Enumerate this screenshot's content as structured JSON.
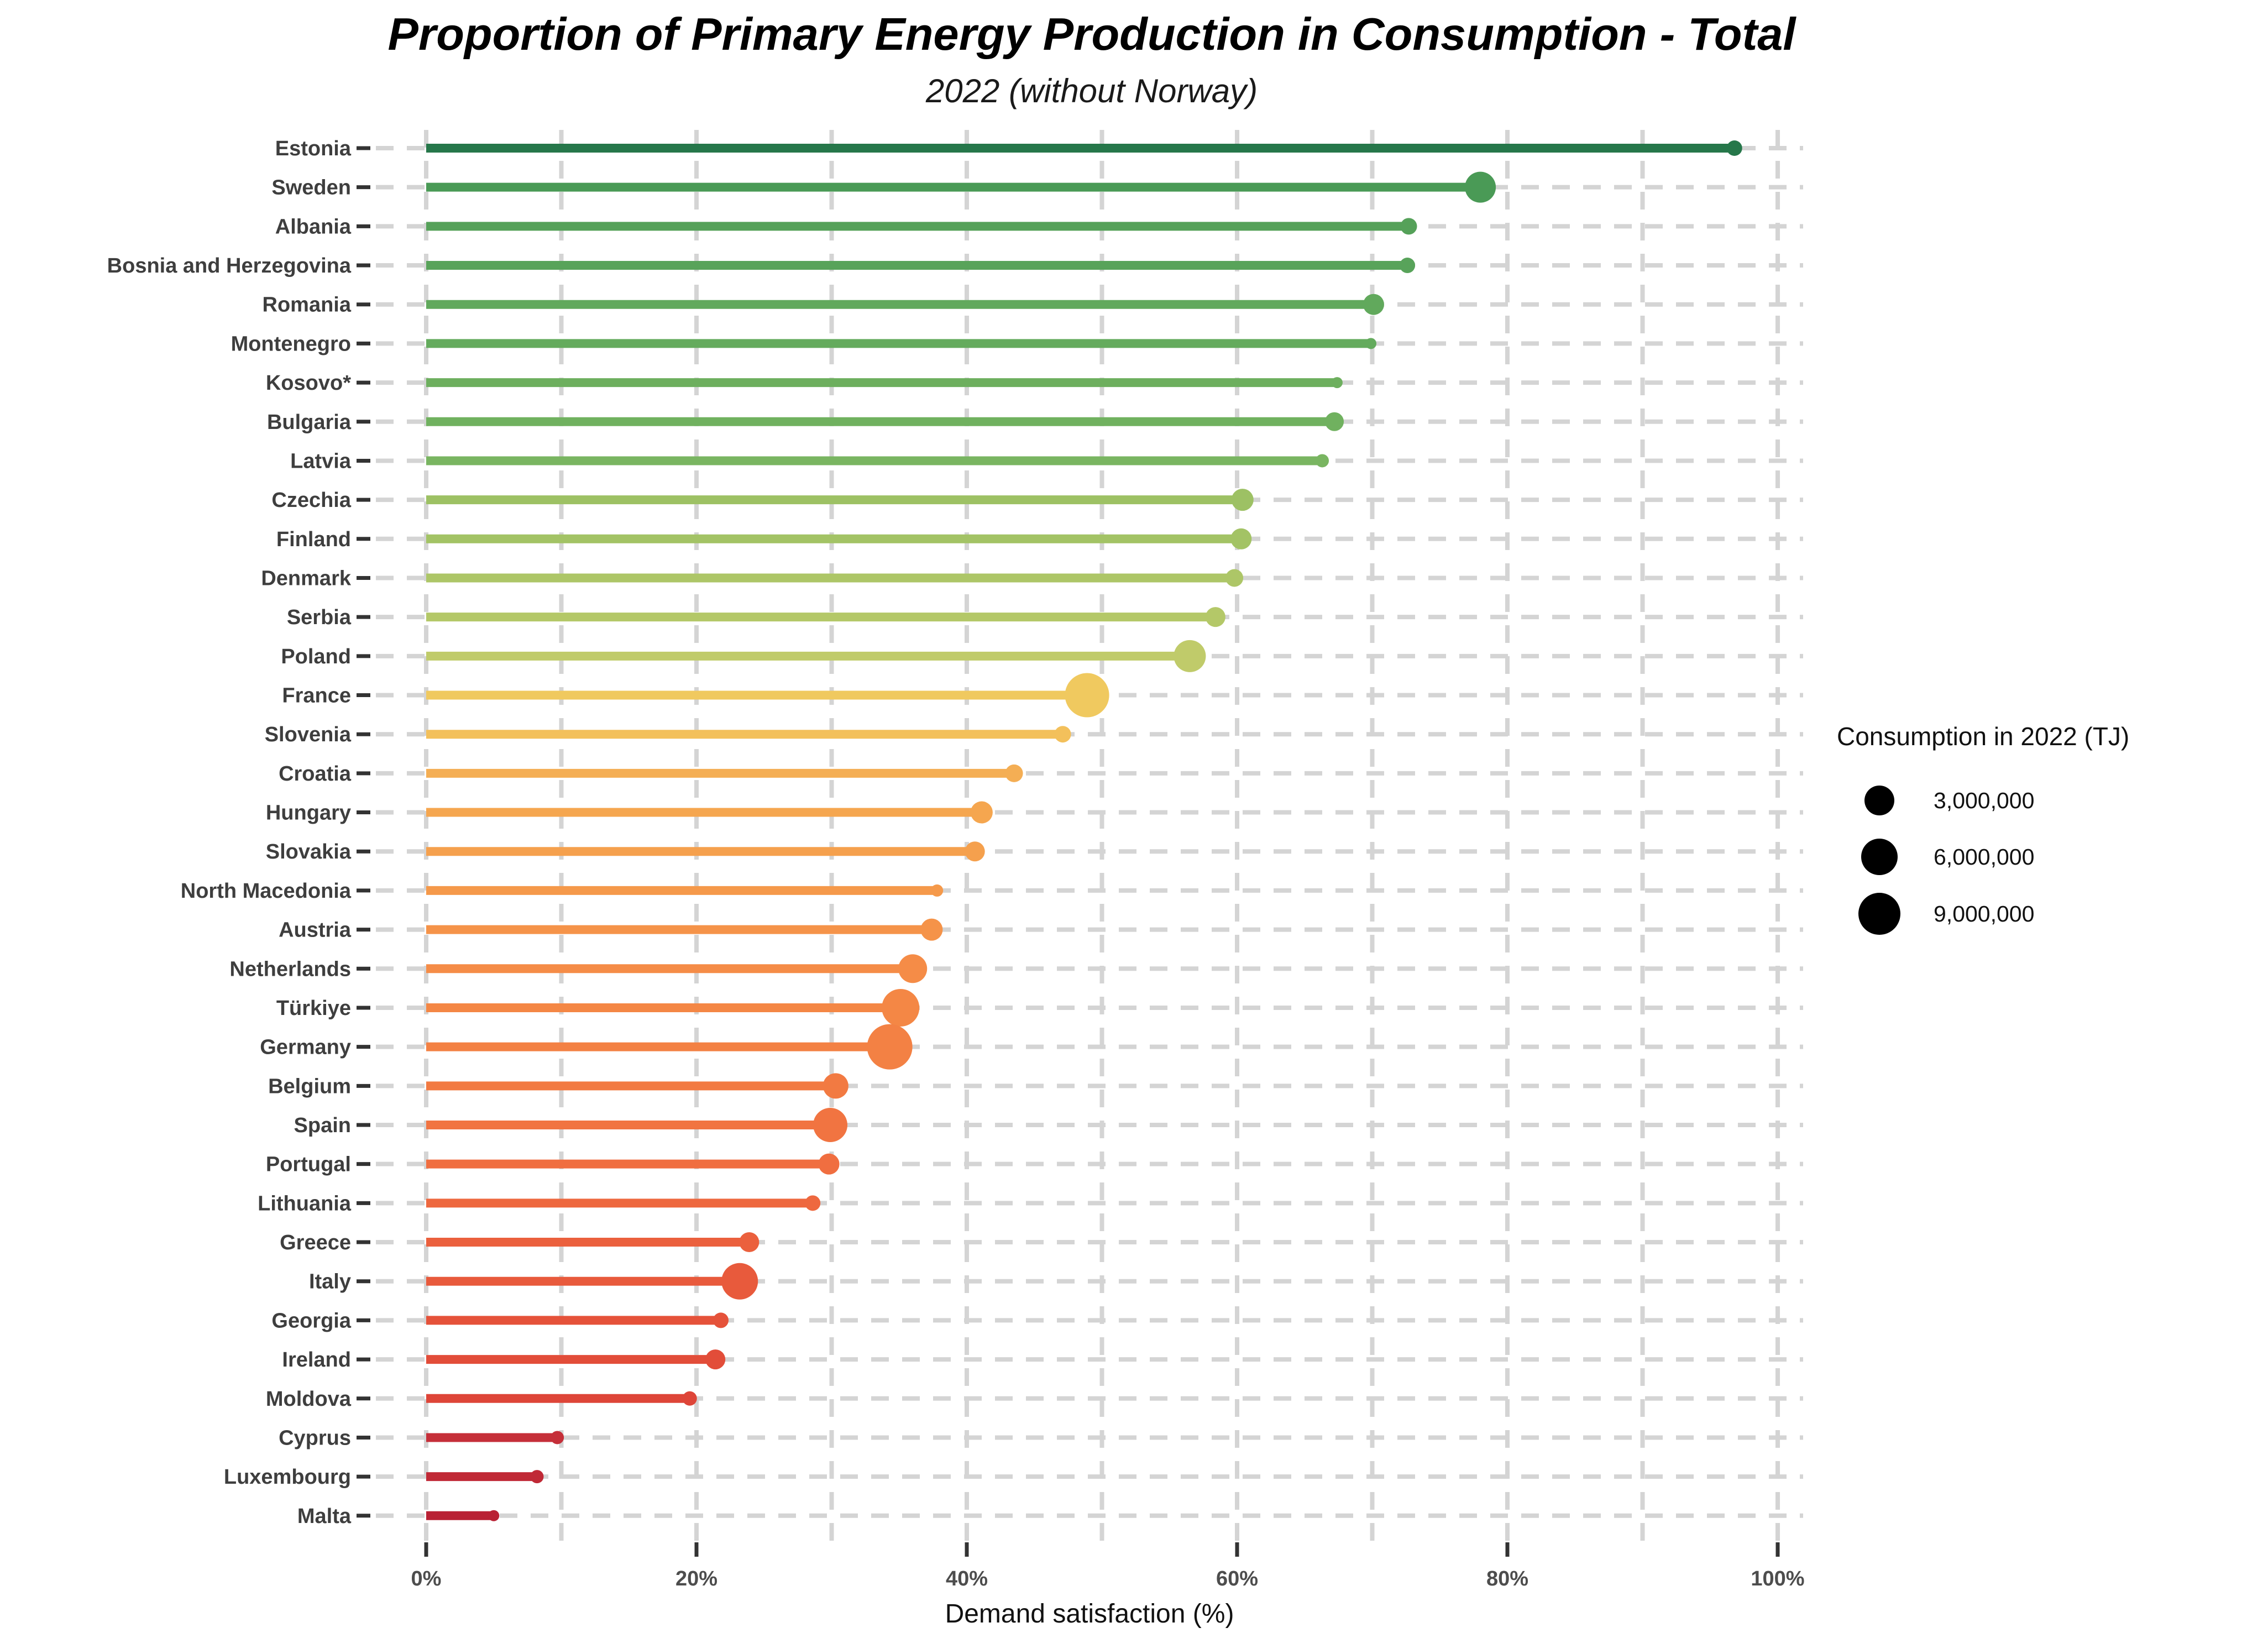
{
  "title": "Proportion of Primary Energy Production in Consumption - Total",
  "subtitle": "2022 (without Norway)",
  "chart_data": {
    "type": "scatter",
    "variant": "horizontal-lollipop-bubble",
    "title": "Proportion of Primary Energy Production in Consumption - Total",
    "subtitle": "2022 (without Norway)",
    "xlabel": "Demand satisfaction (%)",
    "ylabel": "",
    "xlim": [
      0,
      100
    ],
    "grid": "dashed-both-axes",
    "gridline_step_percent": 10,
    "x_ticks": [
      {
        "v": 0,
        "label": "0%"
      },
      {
        "v": 20,
        "label": "20%"
      },
      {
        "v": 40,
        "label": "40%"
      },
      {
        "v": 60,
        "label": "60%"
      },
      {
        "v": 80,
        "label": "80%"
      },
      {
        "v": 100,
        "label": "100%"
      }
    ],
    "countries": [
      {
        "name": "Estonia",
        "value": 96.8,
        "dot_r": 14,
        "color": "#26774a"
      },
      {
        "name": "Sweden",
        "value": 78.0,
        "dot_r": 28,
        "color": "#4a9a56"
      },
      {
        "name": "Albania",
        "value": 72.7,
        "dot_r": 15,
        "color": "#55a159"
      },
      {
        "name": "Bosnia and Herzegovina",
        "value": 72.6,
        "dot_r": 14,
        "color": "#58a35a"
      },
      {
        "name": "Romania",
        "value": 70.1,
        "dot_r": 19,
        "color": "#61a95c"
      },
      {
        "name": "Montenegro",
        "value": 69.9,
        "dot_r": 10,
        "color": "#64ab5d"
      },
      {
        "name": "Kosovo*",
        "value": 67.4,
        "dot_r": 10,
        "color": "#6daf5e"
      },
      {
        "name": "Bulgaria",
        "value": 67.2,
        "dot_r": 17,
        "color": "#70b15f"
      },
      {
        "name": "Latvia",
        "value": 66.3,
        "dot_r": 12,
        "color": "#79b561"
      },
      {
        "name": "Czechia",
        "value": 60.4,
        "dot_r": 20,
        "color": "#9dc164"
      },
      {
        "name": "Finland",
        "value": 60.3,
        "dot_r": 19,
        "color": "#a3c365"
      },
      {
        "name": "Denmark",
        "value": 59.8,
        "dot_r": 16,
        "color": "#adc667"
      },
      {
        "name": "Serbia",
        "value": 58.4,
        "dot_r": 18,
        "color": "#b4c868"
      },
      {
        "name": "Poland",
        "value": 56.5,
        "dot_r": 29,
        "color": "#c0cb6a"
      },
      {
        "name": "France",
        "value": 48.9,
        "dot_r": 40,
        "color": "#f0c95f"
      },
      {
        "name": "Slovenia",
        "value": 47.1,
        "dot_r": 15,
        "color": "#f3c05b"
      },
      {
        "name": "Croatia",
        "value": 43.5,
        "dot_r": 16,
        "color": "#f4ae54"
      },
      {
        "name": "Hungary",
        "value": 41.1,
        "dot_r": 20,
        "color": "#f5a64f"
      },
      {
        "name": "Slovakia",
        "value": 40.6,
        "dot_r": 18,
        "color": "#f5a04d"
      },
      {
        "name": "North Macedonia",
        "value": 37.8,
        "dot_r": 11,
        "color": "#f5994a"
      },
      {
        "name": "Austria",
        "value": 37.4,
        "dot_r": 20,
        "color": "#f59349"
      },
      {
        "name": "Netherlands",
        "value": 36.0,
        "dot_r": 26,
        "color": "#f58c47"
      },
      {
        "name": "Türkiye",
        "value": 35.1,
        "dot_r": 34,
        "color": "#f48745"
      },
      {
        "name": "Germany",
        "value": 34.3,
        "dot_r": 41,
        "color": "#f38144"
      },
      {
        "name": "Belgium",
        "value": 30.3,
        "dot_r": 23,
        "color": "#f27a42"
      },
      {
        "name": "Spain",
        "value": 29.9,
        "dot_r": 31,
        "color": "#f17441"
      },
      {
        "name": "Portugal",
        "value": 29.8,
        "dot_r": 19,
        "color": "#f06e40"
      },
      {
        "name": "Lithuania",
        "value": 28.6,
        "dot_r": 14,
        "color": "#ee683f"
      },
      {
        "name": "Greece",
        "value": 23.9,
        "dot_r": 18,
        "color": "#eb603d"
      },
      {
        "name": "Italy",
        "value": 23.2,
        "dot_r": 33,
        "color": "#e85a3c"
      },
      {
        "name": "Georgia",
        "value": 21.8,
        "dot_r": 14,
        "color": "#e5523a"
      },
      {
        "name": "Ireland",
        "value": 21.4,
        "dot_r": 18,
        "color": "#e24d39"
      },
      {
        "name": "Moldova",
        "value": 19.5,
        "dot_r": 13,
        "color": "#de4538"
      },
      {
        "name": "Cyprus",
        "value": 9.7,
        "dot_r": 12,
        "color": "#c52f39"
      },
      {
        "name": "Luxembourg",
        "value": 8.2,
        "dot_r": 12,
        "color": "#c02936"
      },
      {
        "name": "Malta",
        "value": 5.0,
        "dot_r": 10,
        "color": "#b92134"
      }
    ],
    "legend": {
      "title": "Consumption in 2022 (TJ)",
      "position": "right",
      "symbol_color": "#000000",
      "entries": [
        {
          "label": "3,000,000",
          "r": 27
        },
        {
          "label": "6,000,000",
          "r": 33
        },
        {
          "label": "9,000,000",
          "r": 38
        }
      ]
    },
    "style": {
      "gridline_color": "#d4d4d4",
      "axis_tick_color": "#333333",
      "stem_width": 16
    }
  }
}
